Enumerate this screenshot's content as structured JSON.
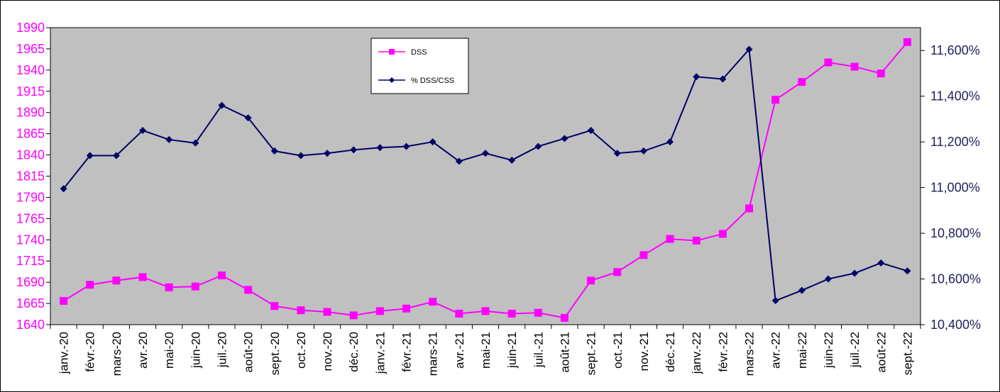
{
  "chart_data": {
    "type": "line",
    "categories": [
      "janv.-20",
      "févr.-20",
      "mars-20",
      "avr.-20",
      "mai-20",
      "juin-20",
      "juil.-20",
      "août-20",
      "sept.-20",
      "oct.-20",
      "nov.-20",
      "déc.-20",
      "janv.-21",
      "févr.-21",
      "mars-21",
      "avr.-21",
      "mai-21",
      "juin-21",
      "juil.-21",
      "août-21",
      "sept.-21",
      "oct.-21",
      "nov.-21",
      "déc.-21",
      "janv.-22",
      "févr.-22",
      "mars-22",
      "avr.-22",
      "mai-22",
      "juin-22",
      "juil.-22",
      "août-22",
      "sept.-22"
    ],
    "series": [
      {
        "name": "DSS",
        "axis": "left",
        "color": "#ff00ff",
        "marker": "square",
        "values": [
          1668,
          1687,
          1692,
          1696,
          1684,
          1685,
          1698,
          1681,
          1662,
          1657,
          1655,
          1651,
          1656,
          1659,
          1667,
          1653,
          1656,
          1653,
          1654,
          1648,
          1692,
          1702,
          1722,
          1741,
          1739,
          1747,
          1777,
          1905,
          1926,
          1949,
          1944,
          1936,
          1973
        ]
      },
      {
        "name": "% DSS/CSS",
        "axis": "right",
        "color": "#000066",
        "marker": "diamond",
        "values": [
          10.995,
          11.14,
          11.14,
          11.25,
          11.21,
          11.195,
          11.36,
          11.305,
          11.16,
          11.14,
          11.15,
          11.165,
          11.175,
          11.18,
          11.2,
          11.115,
          11.15,
          11.12,
          11.18,
          11.215,
          11.25,
          11.15,
          11.16,
          11.2,
          11.485,
          11.475,
          11.605,
          10.505,
          10.55,
          10.6,
          10.625,
          10.67,
          10.635
        ]
      }
    ],
    "y_left": {
      "ylim": [
        1640,
        1990
      ],
      "ticks": [
        "1640",
        "1665",
        "1690",
        "1715",
        "1740",
        "1765",
        "1790",
        "1815",
        "1840",
        "1865",
        "1890",
        "1915",
        "1940",
        "1965",
        "1990"
      ]
    },
    "y_right": {
      "ylim": [
        10.4,
        11.7
      ],
      "ticks": [
        "10,400%",
        "10,600%",
        "10,800%",
        "11,000%",
        "11,200%",
        "11,400%",
        "11,600%"
      ]
    },
    "legend": {
      "position": "top-center",
      "entries": [
        "DSS",
        "% DSS/CSS"
      ]
    },
    "plot_background": "#c0c0c0",
    "grid": false
  }
}
